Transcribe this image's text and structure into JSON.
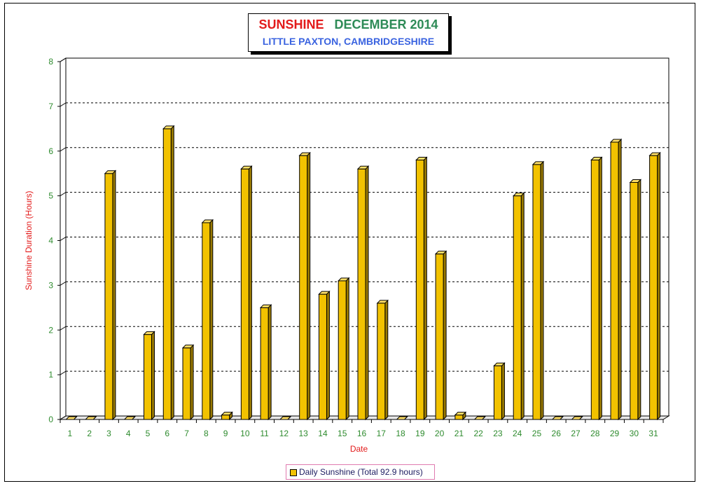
{
  "title": {
    "part1": "SUNSHINE",
    "part2": "DECEMBER 2014",
    "subtitle": "LITTLE PAXTON, CAMBRIDGESHIRE"
  },
  "legend": {
    "label": "Daily Sunshine (Total 92.9 hours)"
  },
  "colors": {
    "bar": "#f2c200",
    "bar_top": "#ffe066",
    "bar_side": "#9a7a00",
    "title_red": "#e31b1b",
    "title_green": "#2e8b57",
    "subtitle_blue": "#3a63e0",
    "axis_label": "#e31b1b",
    "tick": "#2e8b2e"
  },
  "chart_data": {
    "type": "bar",
    "xlabel": "Date",
    "ylabel": "Sunshine Duration (Hours)",
    "ylim": [
      0,
      8
    ],
    "yticks": [
      0,
      1,
      2,
      3,
      4,
      5,
      6,
      7,
      8
    ],
    "grid": true,
    "legend_position": "bottom",
    "categories": [
      "1",
      "2",
      "3",
      "4",
      "5",
      "6",
      "7",
      "8",
      "9",
      "10",
      "11",
      "12",
      "13",
      "14",
      "15",
      "16",
      "17",
      "18",
      "19",
      "20",
      "21",
      "22",
      "23",
      "24",
      "25",
      "26",
      "27",
      "28",
      "29",
      "30",
      "31"
    ],
    "series": [
      {
        "name": "Daily Sunshine (Total 92.9 hours)",
        "values": [
          0,
          0,
          5.5,
          0,
          1.9,
          6.5,
          1.6,
          4.4,
          0.1,
          5.6,
          2.5,
          0,
          5.9,
          2.8,
          3.1,
          5.6,
          2.6,
          0,
          5.8,
          3.7,
          0.1,
          0,
          1.2,
          5.0,
          5.7,
          0,
          0,
          5.8,
          6.2,
          5.3,
          5.9
        ]
      }
    ]
  }
}
